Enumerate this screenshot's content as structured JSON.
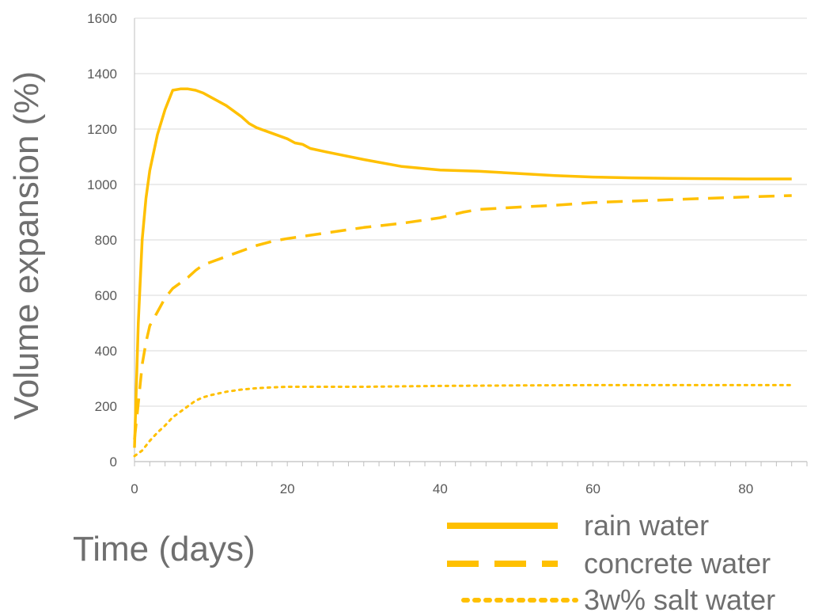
{
  "chart_data": {
    "type": "line",
    "title": "",
    "xlabel": "Time (days)",
    "ylabel": "Volume expansion (%)",
    "xlim": [
      0,
      88
    ],
    "ylim": [
      0,
      1600
    ],
    "x_ticks": [
      0,
      20,
      40,
      60,
      80
    ],
    "y_ticks": [
      0,
      200,
      400,
      600,
      800,
      1000,
      1200,
      1400,
      1600
    ],
    "grid": "horizontal",
    "legend_position": "bottom-right",
    "series": [
      {
        "name": "rain water",
        "style": "solid",
        "color": "#FFC000",
        "x": [
          0,
          0.5,
          1,
          1.5,
          2,
          3,
          4,
          5,
          6,
          7,
          8,
          9,
          10,
          12,
          14,
          15,
          16,
          18,
          20,
          21,
          22,
          23,
          25,
          30,
          35,
          40,
          45,
          50,
          55,
          60,
          65,
          70,
          75,
          80,
          86
        ],
        "y": [
          50,
          500,
          800,
          950,
          1050,
          1180,
          1270,
          1340,
          1345,
          1345,
          1340,
          1330,
          1315,
          1285,
          1245,
          1220,
          1205,
          1185,
          1165,
          1150,
          1145,
          1130,
          1118,
          1090,
          1065,
          1052,
          1048,
          1040,
          1032,
          1027,
          1024,
          1022,
          1021,
          1020,
          1020
        ]
      },
      {
        "name": "concrete water",
        "style": "dashed",
        "color": "#FFC000",
        "x": [
          0,
          0.5,
          1,
          1.5,
          2,
          3,
          4,
          5,
          6,
          7,
          8,
          9,
          10,
          12,
          14,
          16,
          18,
          20,
          25,
          30,
          35,
          40,
          43,
          45,
          50,
          55,
          60,
          65,
          70,
          75,
          80,
          86
        ],
        "y": [
          80,
          210,
          350,
          430,
          490,
          540,
          590,
          625,
          645,
          665,
          690,
          710,
          720,
          740,
          760,
          780,
          795,
          805,
          825,
          845,
          860,
          880,
          900,
          910,
          918,
          925,
          935,
          940,
          945,
          950,
          955,
          960
        ]
      },
      {
        "name": "3w% salt water",
        "style": "dotted",
        "color": "#FFC000",
        "x": [
          0,
          1,
          2,
          3,
          4,
          5,
          6,
          7,
          8,
          9,
          10,
          12,
          14,
          16,
          18,
          20,
          25,
          30,
          40,
          50,
          60,
          70,
          80,
          86
        ],
        "y": [
          20,
          40,
          75,
          105,
          130,
          160,
          180,
          200,
          220,
          232,
          240,
          252,
          260,
          265,
          268,
          270,
          270,
          270,
          273,
          275,
          276,
          276,
          276,
          276
        ]
      }
    ]
  }
}
